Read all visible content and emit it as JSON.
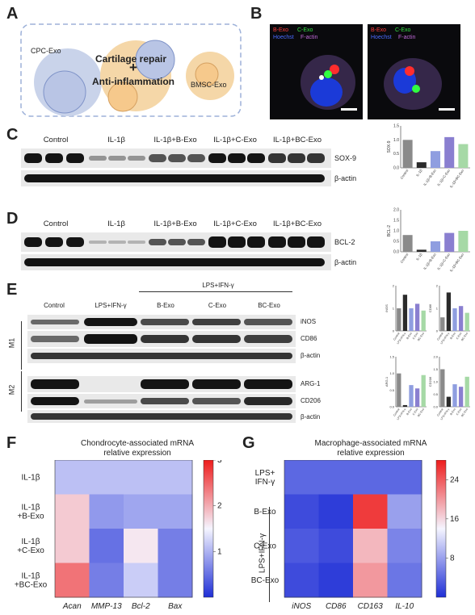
{
  "panels": {
    "A": {
      "label": "A",
      "cpc": "CPC-Exo",
      "bmsc": "BMSC-Exo",
      "plus": "+",
      "line1": "Cartilage repair",
      "line2": "Anti-inflammation"
    },
    "B": {
      "label": "B",
      "left": {
        "bexo": "B-Exo",
        "cexo": "C-Exo",
        "hoechst": "Hoechst",
        "factin": "F-actin"
      },
      "right": {
        "bexo": "B-Exo",
        "cexo": "C-Exo",
        "hoechst": "Hoechst",
        "factin": "F-actin"
      }
    },
    "C": {
      "label": "C",
      "groups": [
        "Control",
        "IL-1β",
        "IL-1β+B-Exo",
        "IL-1β+C-Exo",
        "IL-1β+BC-Exo"
      ],
      "protein": "SOX-9",
      "loading": "β-actin"
    },
    "D": {
      "label": "D",
      "groups": [
        "Control",
        "IL-1β",
        "IL-1β+B-Exo",
        "IL-1β+C-Exo",
        "IL-1β+BC-Exo"
      ],
      "protein": "BCL-2",
      "loading": "β-actin"
    },
    "E": {
      "label": "E",
      "header": "LPS+IFN-γ",
      "groups": [
        "Control",
        "LPS+IFN-γ",
        "B-Exo",
        "C-Exo",
        "BC-Exo"
      ],
      "m1": "M1",
      "m2": "M2",
      "m1_rows": [
        "iNOS",
        "CD86",
        "β-actin"
      ],
      "m2_rows": [
        "ARG-1",
        "CD206",
        "β-actin"
      ]
    },
    "F": {
      "label": "F",
      "title1": "Chondrocyte-associated mRNA",
      "title2": "relative expression"
    },
    "G": {
      "label": "G",
      "title1": "Macrophage-associated mRNA",
      "title2": "relative expression",
      "side": "LPS+IFN-γ"
    }
  },
  "colors": {
    "low": "#1f2fd6",
    "mid": "#f5f5ff",
    "high": "#ee1c1c",
    "gray": "#8a8a8a",
    "black": "#2b2b2b",
    "blue": "#8f9ee0",
    "purple": "#8a7fd0",
    "green": "#a6d9a6"
  },
  "chart_data": [
    {
      "type": "bar",
      "panel": "C",
      "ylabel": "SOX-9",
      "categories": [
        "Control",
        "IL-1β",
        "IL-1β+B-Exo",
        "IL-1β+C-Exo",
        "IL-1β+BC-Exo"
      ],
      "values": [
        1.0,
        0.2,
        0.6,
        1.1,
        0.85
      ],
      "ylim": [
        0,
        1.5
      ],
      "yticks": [
        "0.0",
        "0.5",
        "1.0",
        "1.5"
      ]
    },
    {
      "type": "bar",
      "panel": "D",
      "ylabel": "BCL-2",
      "categories": [
        "Control",
        "IL-1β",
        "IL-1β+B-Exo",
        "IL-1β+C-Exo",
        "IL-1β+BC-Exo"
      ],
      "values": [
        0.8,
        0.1,
        0.5,
        0.9,
        1.0
      ],
      "ylim": [
        0,
        2.0
      ],
      "yticks": [
        "0.0",
        "0.5",
        "1.0",
        "1.5",
        "2.0"
      ]
    },
    {
      "type": "bar",
      "panel": "E-iNOS",
      "ylabel": "iNOS",
      "categories": [
        "Control",
        "LPS+IFN-γ",
        "B-Exo",
        "C-Exo",
        "BC-Exo"
      ],
      "values": [
        1.0,
        1.6,
        1.0,
        1.2,
        0.9
      ],
      "ylim": [
        0,
        2.0
      ],
      "yticks": [
        "0",
        "1",
        "2"
      ]
    },
    {
      "type": "bar",
      "panel": "E-CD86",
      "ylabel": "CD86",
      "categories": [
        "Control",
        "LPS+IFN-γ",
        "B-Exo",
        "C-Exo",
        "BC-Exo"
      ],
      "values": [
        0.6,
        1.7,
        1.0,
        1.1,
        0.8
      ],
      "ylim": [
        0,
        2.0
      ],
      "yticks": [
        "0",
        "1",
        "2"
      ]
    },
    {
      "type": "bar",
      "panel": "E-ARG-1",
      "ylabel": "ARG-1",
      "categories": [
        "Control",
        "LPS+IFN-γ",
        "B-Exo",
        "C-Exo",
        "BC-Exo"
      ],
      "values": [
        1.0,
        0.05,
        0.65,
        0.55,
        0.95
      ],
      "ylim": [
        0,
        1.5
      ],
      "yticks": [
        "0.0",
        "0.5",
        "1.0",
        "1.5"
      ]
    },
    {
      "type": "bar",
      "panel": "E-CD206",
      "ylabel": "CD206",
      "categories": [
        "Control",
        "LPS+IFN-γ",
        "B-Exo",
        "C-Exo",
        "BC-Exo"
      ],
      "values": [
        1.5,
        0.4,
        0.9,
        0.8,
        1.2
      ],
      "ylim": [
        0,
        2.0
      ],
      "yticks": [
        "0.0",
        "0.5",
        "1.0",
        "1.5",
        "2.0"
      ]
    },
    {
      "type": "heatmap",
      "panel": "F",
      "rows": [
        "IL-1β",
        "IL-1β +B-Exo",
        "IL-1β +C-Exo",
        "IL-1β +BC-Exo"
      ],
      "columns": [
        "Acan",
        "MMP-13",
        "Bcl-2",
        "Bax"
      ],
      "values": [
        [
          1.1,
          1.1,
          1.1,
          1.1
        ],
        [
          1.8,
          0.8,
          0.9,
          0.9
        ],
        [
          1.8,
          0.5,
          1.6,
          0.6
        ],
        [
          2.4,
          0.6,
          1.2,
          0.6
        ]
      ],
      "colorbar": {
        "min": 0,
        "max": 3,
        "ticks": [
          "1",
          "2",
          "3"
        ]
      }
    },
    {
      "type": "heatmap",
      "panel": "G",
      "rows": [
        "LPS+ IFN-γ",
        "B-Exo",
        "C-Exo",
        "BC-Exo"
      ],
      "columns": [
        "iNOS",
        "CD86",
        "CD163",
        "IL-10"
      ],
      "values": [
        [
          4,
          4,
          4,
          4
        ],
        [
          2,
          1,
          26,
          8
        ],
        [
          3,
          2,
          18,
          6
        ],
        [
          2,
          1,
          20,
          5
        ]
      ],
      "colorbar": {
        "min": 0,
        "max": 28,
        "ticks": [
          "8",
          "16",
          "24"
        ]
      }
    }
  ]
}
